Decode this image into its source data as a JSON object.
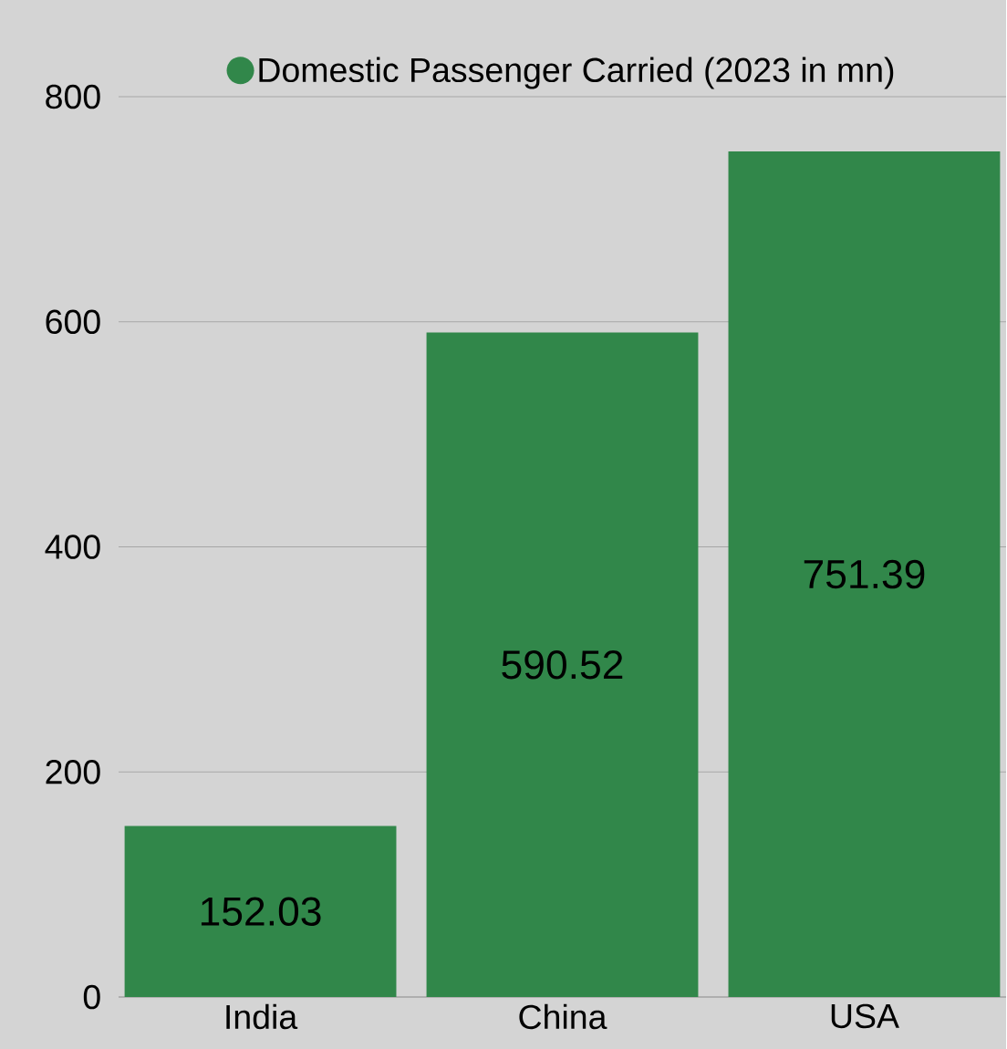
{
  "chart_data": {
    "type": "bar",
    "categories": [
      "India",
      "China",
      "USA"
    ],
    "series": [
      {
        "name": "Domestic Passenger Carried (2023 in mn)",
        "color": "#31874a",
        "values": [
          152.03,
          590.52,
          751.39
        ]
      }
    ],
    "ylim": [
      0,
      800
    ],
    "yticks": [
      0,
      200,
      400,
      600,
      800
    ],
    "grid": "y",
    "legend": "top",
    "data_labels": true
  }
}
